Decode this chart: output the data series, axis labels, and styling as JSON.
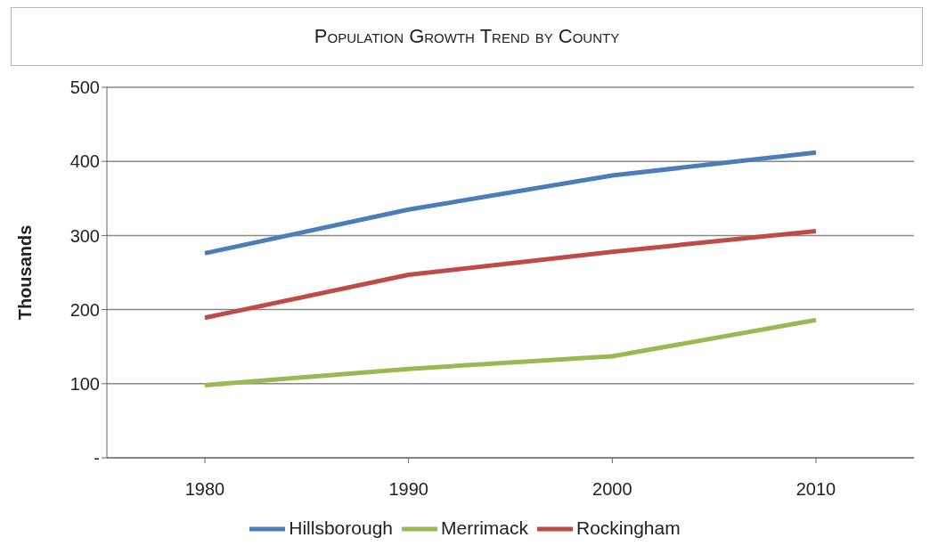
{
  "chart_data": {
    "type": "line",
    "title": "Population Growth Trend by County",
    "ylabel": "Thousands",
    "categories": [
      "1980",
      "1990",
      "2000",
      "2010"
    ],
    "series": [
      {
        "name": "Hillsborough",
        "color": "#4a7ebb",
        "values": [
          276,
          335,
          381,
          412
        ]
      },
      {
        "name": "Rockingham",
        "color": "#be4b48",
        "values": [
          189,
          247,
          278,
          306
        ]
      },
      {
        "name": "Merrimack",
        "color": "#98b954",
        "values": [
          98,
          120,
          137,
          186
        ]
      }
    ],
    "ylim": [
      0,
      500
    ],
    "yticks": [
      {
        "value": 0,
        "label": "-"
      },
      100,
      200,
      300,
      400,
      500
    ],
    "grid": "y",
    "legend": "bottom"
  }
}
